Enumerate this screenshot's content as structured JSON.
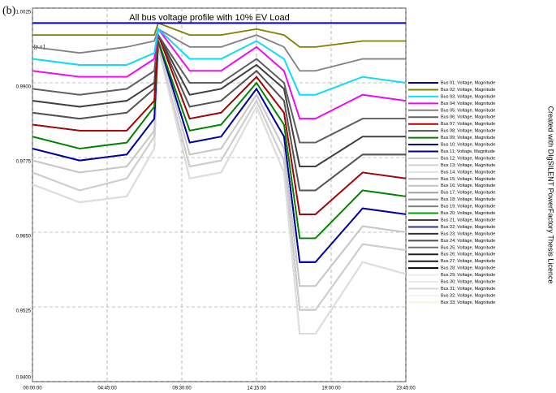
{
  "chart_data": {
    "type": "line",
    "title": "All bus voltage profile with 10% EV Load",
    "panel_label": "(b)",
    "y_unit_label": "[p.u.]",
    "side_note": "Created with DIgSILENT PowerFactory Thesis Licence",
    "x": [
      0,
      3,
      6,
      7.75,
      8,
      10,
      12,
      14.25,
      16,
      17,
      18,
      21,
      23.75
    ],
    "xlim": [
      0,
      23.75
    ],
    "xticks": [
      {
        "value": 0,
        "label": "00:00:00"
      },
      {
        "value": 4.75,
        "label": "04:45:00"
      },
      {
        "value": 9.5,
        "label": "09:30:00"
      },
      {
        "value": 14.25,
        "label": "14:15:00"
      },
      {
        "value": 19,
        "label": "19:00:00"
      },
      {
        "value": 23.75,
        "label": "23:45:00"
      }
    ],
    "ylim": [
      0.94,
      1.0025
    ],
    "yticks": [
      {
        "value": 0.94,
        "label": "0.9400"
      },
      {
        "value": 0.9525,
        "label": "0.9525"
      },
      {
        "value": 0.965,
        "label": "0.9650"
      },
      {
        "value": 0.9775,
        "label": "0.9775"
      },
      {
        "value": 0.99,
        "label": "0.9900"
      },
      {
        "value": 1.0025,
        "label": "1.0025"
      }
    ],
    "grid": true,
    "series": [
      {
        "name": "Bus 01; Voltage, Magnitude",
        "color": "#0000c0",
        "values": [
          1,
          1,
          1,
          1,
          1,
          1,
          1,
          1,
          1,
          1,
          1,
          1,
          1
        ]
      },
      {
        "name": "Bus 02; Voltage, Magnitude",
        "color": "#808000",
        "values": [
          0.998,
          0.998,
          0.998,
          0.998,
          1,
          0.998,
          0.998,
          0.999,
          0.998,
          0.996,
          0.996,
          0.997,
          0.997
        ]
      },
      {
        "name": "Bus 03; Voltage, Magnitude",
        "color": "#00e5ff",
        "values": [
          0.994,
          0.993,
          0.993,
          0.995,
          0.999,
          0.994,
          0.994,
          0.997,
          0.994,
          0.988,
          0.988,
          0.991,
          0.99
        ]
      },
      {
        "name": "Bus 04; Voltage, Magnitude",
        "color": "#ff00ff",
        "values": [
          0.992,
          0.991,
          0.991,
          0.994,
          0.999,
          0.992,
          0.992,
          0.996,
          0.992,
          0.984,
          0.984,
          0.988,
          0.987
        ]
      },
      {
        "name": "Bus 05; Voltage, Magnitude",
        "color": "#808080",
        "values": [
          0.996,
          0.995,
          0.996,
          0.997,
          0.999,
          0.996,
          0.996,
          0.998,
          0.996,
          0.992,
          0.992,
          0.994,
          0.994
        ]
      },
      {
        "name": "Bus 06; Voltage, Magnitude",
        "color": "#606060",
        "values": [
          0.989,
          0.988,
          0.989,
          0.992,
          0.998,
          0.99,
          0.99,
          0.994,
          0.99,
          0.98,
          0.98,
          0.984,
          0.984
        ]
      },
      {
        "name": "Bus 07; Voltage, Magnitude",
        "color": "#b00000",
        "values": [
          0.983,
          0.982,
          0.982,
          0.987,
          0.998,
          0.984,
          0.985,
          0.991,
          0.985,
          0.968,
          0.968,
          0.975,
          0.974
        ]
      },
      {
        "name": "Bus 08; Voltage, Magnitude",
        "color": "#555555",
        "values": [
          0.985,
          0.984,
          0.985,
          0.989,
          0.998,
          0.986,
          0.987,
          0.992,
          0.987,
          0.972,
          0.972,
          0.978,
          0.978
        ]
      },
      {
        "name": "Bus 09; Voltage, Magnitude",
        "color": "#008000",
        "values": [
          0.981,
          0.979,
          0.98,
          0.986,
          0.997,
          0.982,
          0.983,
          0.99,
          0.983,
          0.964,
          0.964,
          0.972,
          0.971
        ]
      },
      {
        "name": "Bus 10; Voltage, Magnitude",
        "color": "#0000aa",
        "values": [
          0.979,
          0.977,
          0.978,
          0.984,
          0.997,
          0.98,
          0.981,
          0.989,
          0.981,
          0.96,
          0.96,
          0.969,
          0.968
        ]
      },
      {
        "name": "Bus 11; Voltage, Magnitude",
        "color": "#000080",
        "values": [
          0.979,
          0.977,
          0.978,
          0.984,
          0.997,
          0.98,
          0.981,
          0.989,
          0.981,
          0.96,
          0.96,
          0.969,
          0.968
        ]
      },
      {
        "name": "Bus 12; Voltage, Magnitude",
        "color": "#c8c8c8",
        "values": [
          0.977,
          0.975,
          0.976,
          0.982,
          0.997,
          0.978,
          0.979,
          0.988,
          0.979,
          0.956,
          0.956,
          0.966,
          0.965
        ]
      },
      {
        "name": "Bus 13; Voltage, Magnitude",
        "color": "#d0d0d0",
        "values": [
          0.975,
          0.972,
          0.974,
          0.981,
          0.996,
          0.976,
          0.977,
          0.987,
          0.977,
          0.952,
          0.952,
          0.963,
          0.962
        ]
      },
      {
        "name": "Bus 14; Voltage, Magnitude",
        "color": "#e0e0e0",
        "values": [
          0.973,
          0.97,
          0.971,
          0.979,
          0.996,
          0.974,
          0.975,
          0.986,
          0.975,
          0.948,
          0.948,
          0.96,
          0.958
        ]
      },
      {
        "name": "Bus 15; Voltage, Magnitude",
        "color": "#b0b0b0",
        "values": [
          0.975,
          0.972,
          0.974,
          0.981,
          0.996,
          0.976,
          0.977,
          0.987,
          0.977,
          0.952,
          0.952,
          0.963,
          0.962
        ]
      },
      {
        "name": "Bus 16; Voltage, Magnitude",
        "color": "#c0c0c0",
        "values": [
          0.973,
          0.97,
          0.971,
          0.979,
          0.996,
          0.974,
          0.975,
          0.986,
          0.975,
          0.948,
          0.948,
          0.96,
          0.958
        ]
      },
      {
        "name": "Bus 17; Voltage, Magnitude",
        "color": "#a0a0a0",
        "values": [
          0.977,
          0.975,
          0.976,
          0.982,
          0.997,
          0.978,
          0.979,
          0.988,
          0.979,
          0.956,
          0.956,
          0.966,
          0.965
        ]
      },
      {
        "name": "Bus 18; Voltage, Magnitude",
        "color": "#909090",
        "values": [
          0.973,
          0.97,
          0.971,
          0.979,
          0.996,
          0.974,
          0.975,
          0.986,
          0.975,
          0.948,
          0.948,
          0.96,
          0.958
        ]
      },
      {
        "name": "Bus 19; Voltage, Magnitude",
        "color": "#7f7f7f",
        "values": [
          0.975,
          0.972,
          0.974,
          0.981,
          0.996,
          0.976,
          0.977,
          0.987,
          0.977,
          0.952,
          0.952,
          0.963,
          0.962
        ]
      },
      {
        "name": "Bus 20; Voltage, Magnitude",
        "color": "#00a000",
        "values": [
          0.981,
          0.979,
          0.98,
          0.986,
          0.997,
          0.982,
          0.983,
          0.99,
          0.983,
          0.964,
          0.964,
          0.972,
          0.971
        ]
      },
      {
        "name": "Bus 21; Voltage, Magnitude",
        "color": "#404040",
        "values": [
          0.987,
          0.986,
          0.987,
          0.99,
          0.998,
          0.988,
          0.989,
          0.993,
          0.989,
          0.976,
          0.976,
          0.981,
          0.981
        ]
      },
      {
        "name": "Bus 22; Voltage, Magnitude",
        "color": "#3030a0",
        "values": [
          0.979,
          0.977,
          0.978,
          0.984,
          0.997,
          0.98,
          0.981,
          0.989,
          0.981,
          0.96,
          0.96,
          0.969,
          0.968
        ]
      },
      {
        "name": "Bus 23; Voltage, Magnitude",
        "color": "#303030",
        "values": [
          0.989,
          0.988,
          0.989,
          0.992,
          0.998,
          0.99,
          0.99,
          0.994,
          0.99,
          0.98,
          0.98,
          0.984,
          0.984
        ]
      },
      {
        "name": "Bus 24; Voltage, Magnitude",
        "color": "#505050",
        "values": [
          0.992,
          0.991,
          0.991,
          0.994,
          0.999,
          0.992,
          0.992,
          0.996,
          0.992,
          0.984,
          0.984,
          0.988,
          0.987
        ]
      },
      {
        "name": "Bus 25; Voltage, Magnitude",
        "color": "#707070",
        "values": [
          0.994,
          0.993,
          0.993,
          0.995,
          0.999,
          0.994,
          0.994,
          0.997,
          0.994,
          0.988,
          0.988,
          0.991,
          0.99
        ]
      },
      {
        "name": "Bus 26; Voltage, Magnitude",
        "color": "#202020",
        "values": [
          0.987,
          0.986,
          0.987,
          0.99,
          0.998,
          0.988,
          0.989,
          0.993,
          0.989,
          0.976,
          0.976,
          0.981,
          0.981
        ]
      },
      {
        "name": "Bus 27; Voltage, Magnitude",
        "color": "#1a1a1a",
        "values": [
          0.985,
          0.984,
          0.985,
          0.989,
          0.998,
          0.986,
          0.987,
          0.992,
          0.987,
          0.972,
          0.972,
          0.978,
          0.978
        ]
      },
      {
        "name": "Bus 28; Voltage, Magnitude",
        "color": "#000000",
        "values": [
          0.983,
          0.982,
          0.982,
          0.987,
          0.998,
          0.984,
          0.985,
          0.991,
          0.985,
          0.968,
          0.968,
          0.975,
          0.974
        ]
      },
      {
        "name": "Bus 29; Voltage, Magnitude",
        "color": "#ecece4",
        "values": [
          0.977,
          0.975,
          0.976,
          0.982,
          0.997,
          0.978,
          0.979,
          0.988,
          0.979,
          0.956,
          0.956,
          0.966,
          0.965
        ]
      },
      {
        "name": "Bus 30; Voltage, Magnitude",
        "color": "#e8e8e8",
        "values": [
          0.975,
          0.972,
          0.974,
          0.981,
          0.996,
          0.976,
          0.977,
          0.987,
          0.977,
          0.952,
          0.952,
          0.963,
          0.962
        ]
      },
      {
        "name": "Bus 31; Voltage, Magnitude",
        "color": "#d8d8d8",
        "values": [
          0.973,
          0.97,
          0.971,
          0.979,
          0.996,
          0.974,
          0.975,
          0.986,
          0.975,
          0.948,
          0.948,
          0.96,
          0.958
        ]
      },
      {
        "name": "Bus 32; Voltage, Magnitude",
        "color": "#f2f2f2",
        "values": [
          0.979,
          0.977,
          0.978,
          0.984,
          0.997,
          0.98,
          0.981,
          0.989,
          0.981,
          0.96,
          0.96,
          0.969,
          0.968
        ]
      },
      {
        "name": "Bus 33; Voltage, Magnitude",
        "color": "#f5f5dc",
        "values": [
          0.981,
          0.979,
          0.98,
          0.986,
          0.997,
          0.982,
          0.983,
          0.99,
          0.983,
          0.964,
          0.964,
          0.972,
          0.971
        ]
      }
    ]
  }
}
